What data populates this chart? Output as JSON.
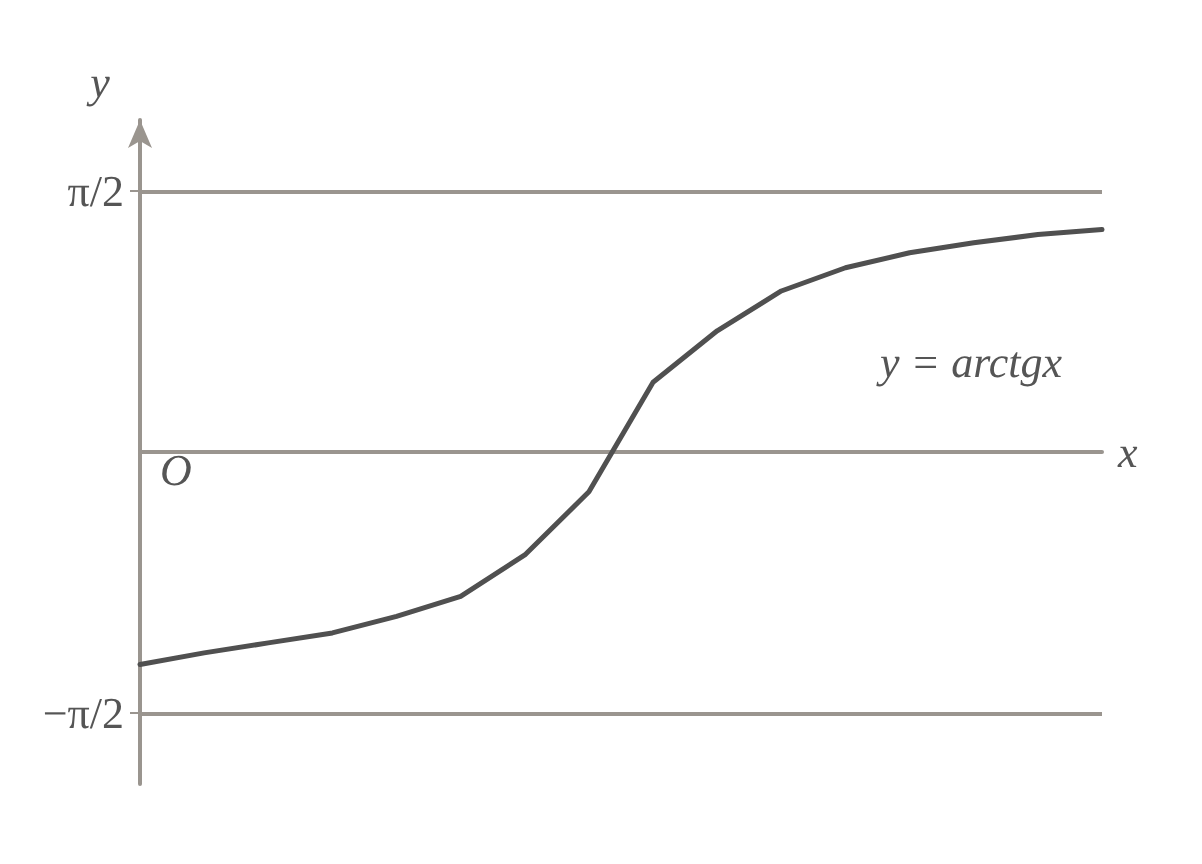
{
  "chart_data": {
    "type": "line",
    "xlabel": "x",
    "ylabel": "y",
    "categories": [
      null,
      null,
      null,
      null,
      null,
      null,
      null,
      null,
      null,
      null,
      null,
      null,
      null,
      null,
      null,
      null
    ],
    "series": [
      {
        "color": "#505050",
        "values": [
          -1.28,
          -1.21,
          -1.15,
          -1.09,
          -0.99,
          -0.87,
          -0.62,
          -0.24,
          0.42,
          0.73,
          0.97,
          1.11,
          1.2,
          1.26,
          1.31,
          1.34
        ]
      }
    ],
    "ylim": [
      -2,
      2
    ],
    "yticks": [
      {
        "value": -1.5708,
        "label": "−π/2"
      },
      {
        "value": 1.5708,
        "label": "π/2"
      }
    ],
    "ref_lines": [
      {
        "axis": "y",
        "value": 1.5708,
        "color": "#9a958f"
      },
      {
        "axis": "y",
        "value": -1.5708,
        "color": "#9a958f"
      }
    ],
    "annotations": [
      "y = arctgx",
      "O"
    ],
    "grid": false,
    "marker": "none",
    "line_style": "solid"
  }
}
